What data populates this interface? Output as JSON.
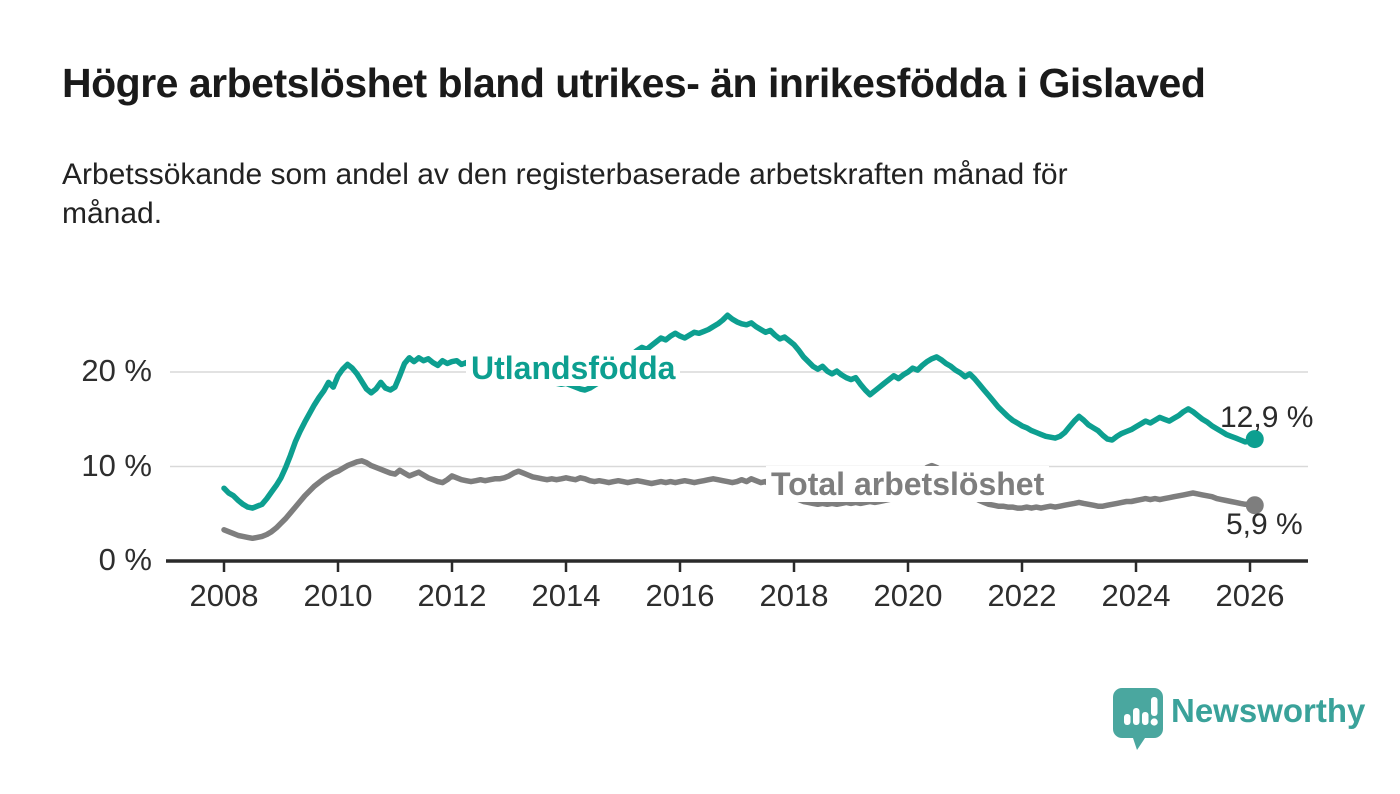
{
  "header": {
    "title": "Högre arbetslöshet bland utrikes- än inrikesfödda i Gislaved",
    "subtitle_line1": "Arbetssökande som andel av den registerbaserade arbetskraften månad för",
    "subtitle_line2": "månad."
  },
  "footer": {
    "brand_name": "Newsworthy",
    "logo_icon": "speech-bubble-bar-chart-icon",
    "brand_color": "#3aa29a",
    "logo_bubble_color": "#4aa79f"
  },
  "chart_data": {
    "type": "line",
    "title": "Högre arbetslöshet bland utrikes- än inrikesfödda i Gislaved",
    "subtitle": "Arbetssökande som andel av den registerbaserade arbetskraften månad för månad.",
    "unit": "%",
    "x_start_year": 2008,
    "x_frequency": "monthly",
    "x_end": "2026-02",
    "xlim": [
      2007.05,
      2027.0
    ],
    "ylim": [
      0,
      27.5
    ],
    "grid": "horizontal",
    "legend_position": "inline-labels",
    "x_tick_labels": [
      "2008",
      "2010",
      "2012",
      "2014",
      "2016",
      "2018",
      "2020",
      "2022",
      "2024",
      "2026"
    ],
    "y_ticks": [
      {
        "label": "0 %",
        "value": 0
      },
      {
        "label": "10 %",
        "value": 10
      },
      {
        "label": "20 %",
        "value": 20
      }
    ],
    "series": [
      {
        "name": "Utlandsfödda",
        "color": "#0d9f90",
        "end_label": "12,9 %",
        "end_value": 12.9,
        "values": [
          7.7,
          7.2,
          6.9,
          6.4,
          6.0,
          5.7,
          5.6,
          5.8,
          6.0,
          6.6,
          7.3,
          8.0,
          8.8,
          9.9,
          11.2,
          12.6,
          13.7,
          14.7,
          15.6,
          16.5,
          17.3,
          18.0,
          18.9,
          18.4,
          19.6,
          20.3,
          20.8,
          20.4,
          19.8,
          19.0,
          18.2,
          17.8,
          18.2,
          18.9,
          18.3,
          18.1,
          18.4,
          19.6,
          20.9,
          21.5,
          21.1,
          21.5,
          21.2,
          21.4,
          21.0,
          20.7,
          21.2,
          20.9,
          21.1,
          21.2,
          20.8,
          21.0,
          20.4,
          20.6,
          20.2,
          20.0,
          19.9,
          19.8,
          19.7,
          19.8,
          19.9,
          19.7,
          19.5,
          19.4,
          19.2,
          19.1,
          19.0,
          18.9,
          18.8,
          18.9,
          18.8,
          18.7,
          18.8,
          18.6,
          18.4,
          18.2,
          18.1,
          18.3,
          18.6,
          18.9,
          19.3,
          19.7,
          20.1,
          20.5,
          20.9,
          21.4,
          21.9,
          22.3,
          22.6,
          22.4,
          22.8,
          23.2,
          23.6,
          23.4,
          23.8,
          24.1,
          23.8,
          23.6,
          23.9,
          24.2,
          24.1,
          24.3,
          24.5,
          24.8,
          25.1,
          25.5,
          26.0,
          25.6,
          25.3,
          25.1,
          25.0,
          25.2,
          24.8,
          24.5,
          24.2,
          24.4,
          23.9,
          23.5,
          23.7,
          23.3,
          22.9,
          22.3,
          21.6,
          21.1,
          20.6,
          20.3,
          20.6,
          20.1,
          19.8,
          20.1,
          19.7,
          19.4,
          19.2,
          19.4,
          18.7,
          18.1,
          17.6,
          18.0,
          18.4,
          18.8,
          19.2,
          19.6,
          19.3,
          19.7,
          20.0,
          20.4,
          20.2,
          20.7,
          21.1,
          21.4,
          21.6,
          21.3,
          20.9,
          20.6,
          20.2,
          19.9,
          19.5,
          19.8,
          19.3,
          18.7,
          18.1,
          17.5,
          16.9,
          16.3,
          15.8,
          15.3,
          14.9,
          14.6,
          14.3,
          14.1,
          13.8,
          13.6,
          13.4,
          13.2,
          13.1,
          13.0,
          13.2,
          13.6,
          14.2,
          14.8,
          15.3,
          14.9,
          14.4,
          14.1,
          13.8,
          13.3,
          12.9,
          12.8,
          13.2,
          13.5,
          13.7,
          13.9,
          14.2,
          14.5,
          14.8,
          14.6,
          14.9,
          15.2,
          15.0,
          14.8,
          15.1,
          15.4,
          15.8,
          16.1,
          15.8,
          15.4,
          15.0,
          14.7,
          14.3,
          14.0,
          13.7,
          13.4,
          13.2,
          13.0,
          12.8,
          12.6,
          12.7,
          12.9
        ]
      },
      {
        "name": "Total arbetslöshet",
        "color": "#7e7e7e",
        "end_label": "5,9 %",
        "end_value": 5.9,
        "values": [
          3.3,
          3.1,
          2.9,
          2.7,
          2.6,
          2.5,
          2.4,
          2.5,
          2.6,
          2.8,
          3.1,
          3.5,
          4.0,
          4.5,
          5.1,
          5.7,
          6.3,
          6.9,
          7.4,
          7.9,
          8.3,
          8.7,
          9.0,
          9.3,
          9.5,
          9.8,
          10.1,
          10.3,
          10.5,
          10.6,
          10.4,
          10.1,
          9.9,
          9.7,
          9.5,
          9.3,
          9.2,
          9.6,
          9.3,
          9.0,
          9.2,
          9.4,
          9.1,
          8.8,
          8.6,
          8.4,
          8.3,
          8.6,
          9.0,
          8.8,
          8.6,
          8.5,
          8.4,
          8.5,
          8.6,
          8.5,
          8.6,
          8.7,
          8.7,
          8.8,
          9.0,
          9.3,
          9.5,
          9.3,
          9.1,
          8.9,
          8.8,
          8.7,
          8.6,
          8.7,
          8.6,
          8.7,
          8.8,
          8.7,
          8.6,
          8.8,
          8.7,
          8.5,
          8.4,
          8.5,
          8.4,
          8.3,
          8.4,
          8.5,
          8.4,
          8.3,
          8.4,
          8.5,
          8.4,
          8.3,
          8.2,
          8.3,
          8.4,
          8.3,
          8.4,
          8.3,
          8.4,
          8.5,
          8.4,
          8.3,
          8.4,
          8.5,
          8.6,
          8.7,
          8.6,
          8.5,
          8.4,
          8.3,
          8.4,
          8.6,
          8.4,
          8.7,
          8.5,
          8.3,
          8.4,
          8.1,
          7.8,
          7.5,
          7.2,
          6.9,
          6.7,
          6.5,
          6.3,
          6.2,
          6.1,
          6.0,
          6.1,
          6.0,
          6.1,
          6.0,
          6.1,
          6.2,
          6.1,
          6.2,
          6.1,
          6.2,
          6.3,
          6.2,
          6.3,
          6.4,
          6.5,
          6.6,
          6.8,
          7.1,
          7.5,
          8.0,
          8.6,
          9.3,
          9.9,
          10.1,
          9.9,
          9.6,
          9.2,
          8.8,
          8.3,
          7.8,
          7.4,
          7.0,
          6.7,
          6.4,
          6.2,
          6.0,
          5.9,
          5.8,
          5.8,
          5.7,
          5.7,
          5.6,
          5.6,
          5.7,
          5.6,
          5.7,
          5.6,
          5.7,
          5.8,
          5.7,
          5.8,
          5.9,
          6.0,
          6.1,
          6.2,
          6.1,
          6.0,
          5.9,
          5.8,
          5.8,
          5.9,
          6.0,
          6.1,
          6.2,
          6.3,
          6.3,
          6.4,
          6.5,
          6.6,
          6.5,
          6.6,
          6.5,
          6.6,
          6.7,
          6.8,
          6.9,
          7.0,
          7.1,
          7.2,
          7.1,
          7.0,
          6.9,
          6.8,
          6.6,
          6.5,
          6.4,
          6.3,
          6.2,
          6.1,
          6.0,
          6.0,
          5.9
        ]
      }
    ]
  }
}
